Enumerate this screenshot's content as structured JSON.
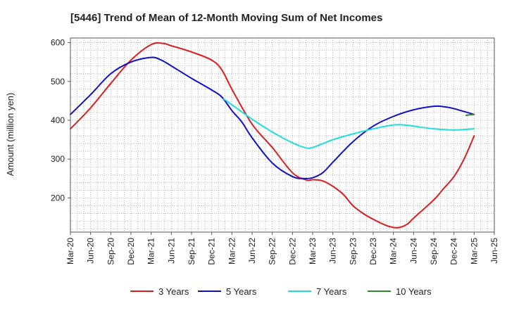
{
  "chart_data": {
    "type": "line",
    "title": "[5446]  Trend of Mean of 12-Month Moving Sum of Net Incomes",
    "xlabel": "",
    "ylabel": "Amount (million yen)",
    "x_ticks": [
      "Mar-20",
      "Jun-20",
      "Sep-20",
      "Dec-20",
      "Mar-21",
      "Jun-21",
      "Sep-21",
      "Dec-21",
      "Mar-22",
      "Jun-22",
      "Sep-22",
      "Dec-22",
      "Mar-23",
      "Jun-23",
      "Sep-23",
      "Dec-23",
      "Mar-24",
      "Jun-24",
      "Sep-24",
      "Dec-24",
      "Mar-25",
      "Jun-25"
    ],
    "y_ticks": [
      200,
      300,
      400,
      500,
      600
    ],
    "ylim": [
      112,
      612
    ],
    "grid": true,
    "legend_position": "bottom",
    "series": [
      {
        "name": "3 Years",
        "color": "#e01b1b",
        "points": [
          [
            0,
            378
          ],
          [
            1,
            432
          ],
          [
            2,
            495
          ],
          [
            3,
            555
          ],
          [
            4,
            595
          ],
          [
            4.6,
            598
          ],
          [
            5,
            592
          ],
          [
            6,
            576
          ],
          [
            7,
            555
          ],
          [
            7.5,
            530
          ],
          [
            8,
            480
          ],
          [
            9,
            390
          ],
          [
            10,
            330
          ],
          [
            11,
            265
          ],
          [
            11.7,
            246
          ],
          [
            12,
            247
          ],
          [
            12.5,
            244
          ],
          [
            13,
            230
          ],
          [
            13.5,
            210
          ],
          [
            14,
            180
          ],
          [
            14.5,
            160
          ],
          [
            15,
            145
          ],
          [
            15.6,
            130
          ],
          [
            16,
            124
          ],
          [
            16.3,
            124
          ],
          [
            16.7,
            133
          ],
          [
            17,
            148
          ],
          [
            18,
            195
          ],
          [
            18.5,
            225
          ],
          [
            19,
            255
          ],
          [
            19.5,
            300
          ],
          [
            20,
            360
          ]
        ]
      },
      {
        "name": "5 Years",
        "color": "#1010cc",
        "points": [
          [
            0,
            415
          ],
          [
            1,
            466
          ],
          [
            2,
            520
          ],
          [
            3,
            550
          ],
          [
            4,
            562
          ],
          [
            4.5,
            555
          ],
          [
            5,
            540
          ],
          [
            6,
            508
          ],
          [
            7,
            478
          ],
          [
            7.5,
            460
          ],
          [
            8,
            425
          ],
          [
            8.5,
            395
          ],
          [
            9,
            355
          ],
          [
            10,
            290
          ],
          [
            11,
            255
          ],
          [
            11.6,
            250
          ],
          [
            12,
            252
          ],
          [
            12.5,
            265
          ],
          [
            13,
            292
          ],
          [
            14,
            345
          ],
          [
            15,
            385
          ],
          [
            16,
            410
          ],
          [
            17,
            427
          ],
          [
            18,
            436
          ],
          [
            18.5,
            435
          ],
          [
            19,
            430
          ],
          [
            20,
            415
          ]
        ]
      },
      {
        "name": "7 Years",
        "color": "#22dddd",
        "points": [
          [
            7.6,
            455
          ],
          [
            8,
            440
          ],
          [
            9,
            403
          ],
          [
            10,
            370
          ],
          [
            11,
            342
          ],
          [
            11.6,
            330
          ],
          [
            12,
            330
          ],
          [
            13,
            350
          ],
          [
            14,
            365
          ],
          [
            15,
            378
          ],
          [
            16,
            388
          ],
          [
            16.5,
            388
          ],
          [
            17,
            385
          ],
          [
            18,
            378
          ],
          [
            19,
            375
          ],
          [
            20,
            378
          ]
        ]
      },
      {
        "name": "10 Years",
        "color": "#2a8a2a",
        "points": [
          [
            19.6,
            413
          ],
          [
            20,
            415
          ]
        ]
      }
    ]
  }
}
